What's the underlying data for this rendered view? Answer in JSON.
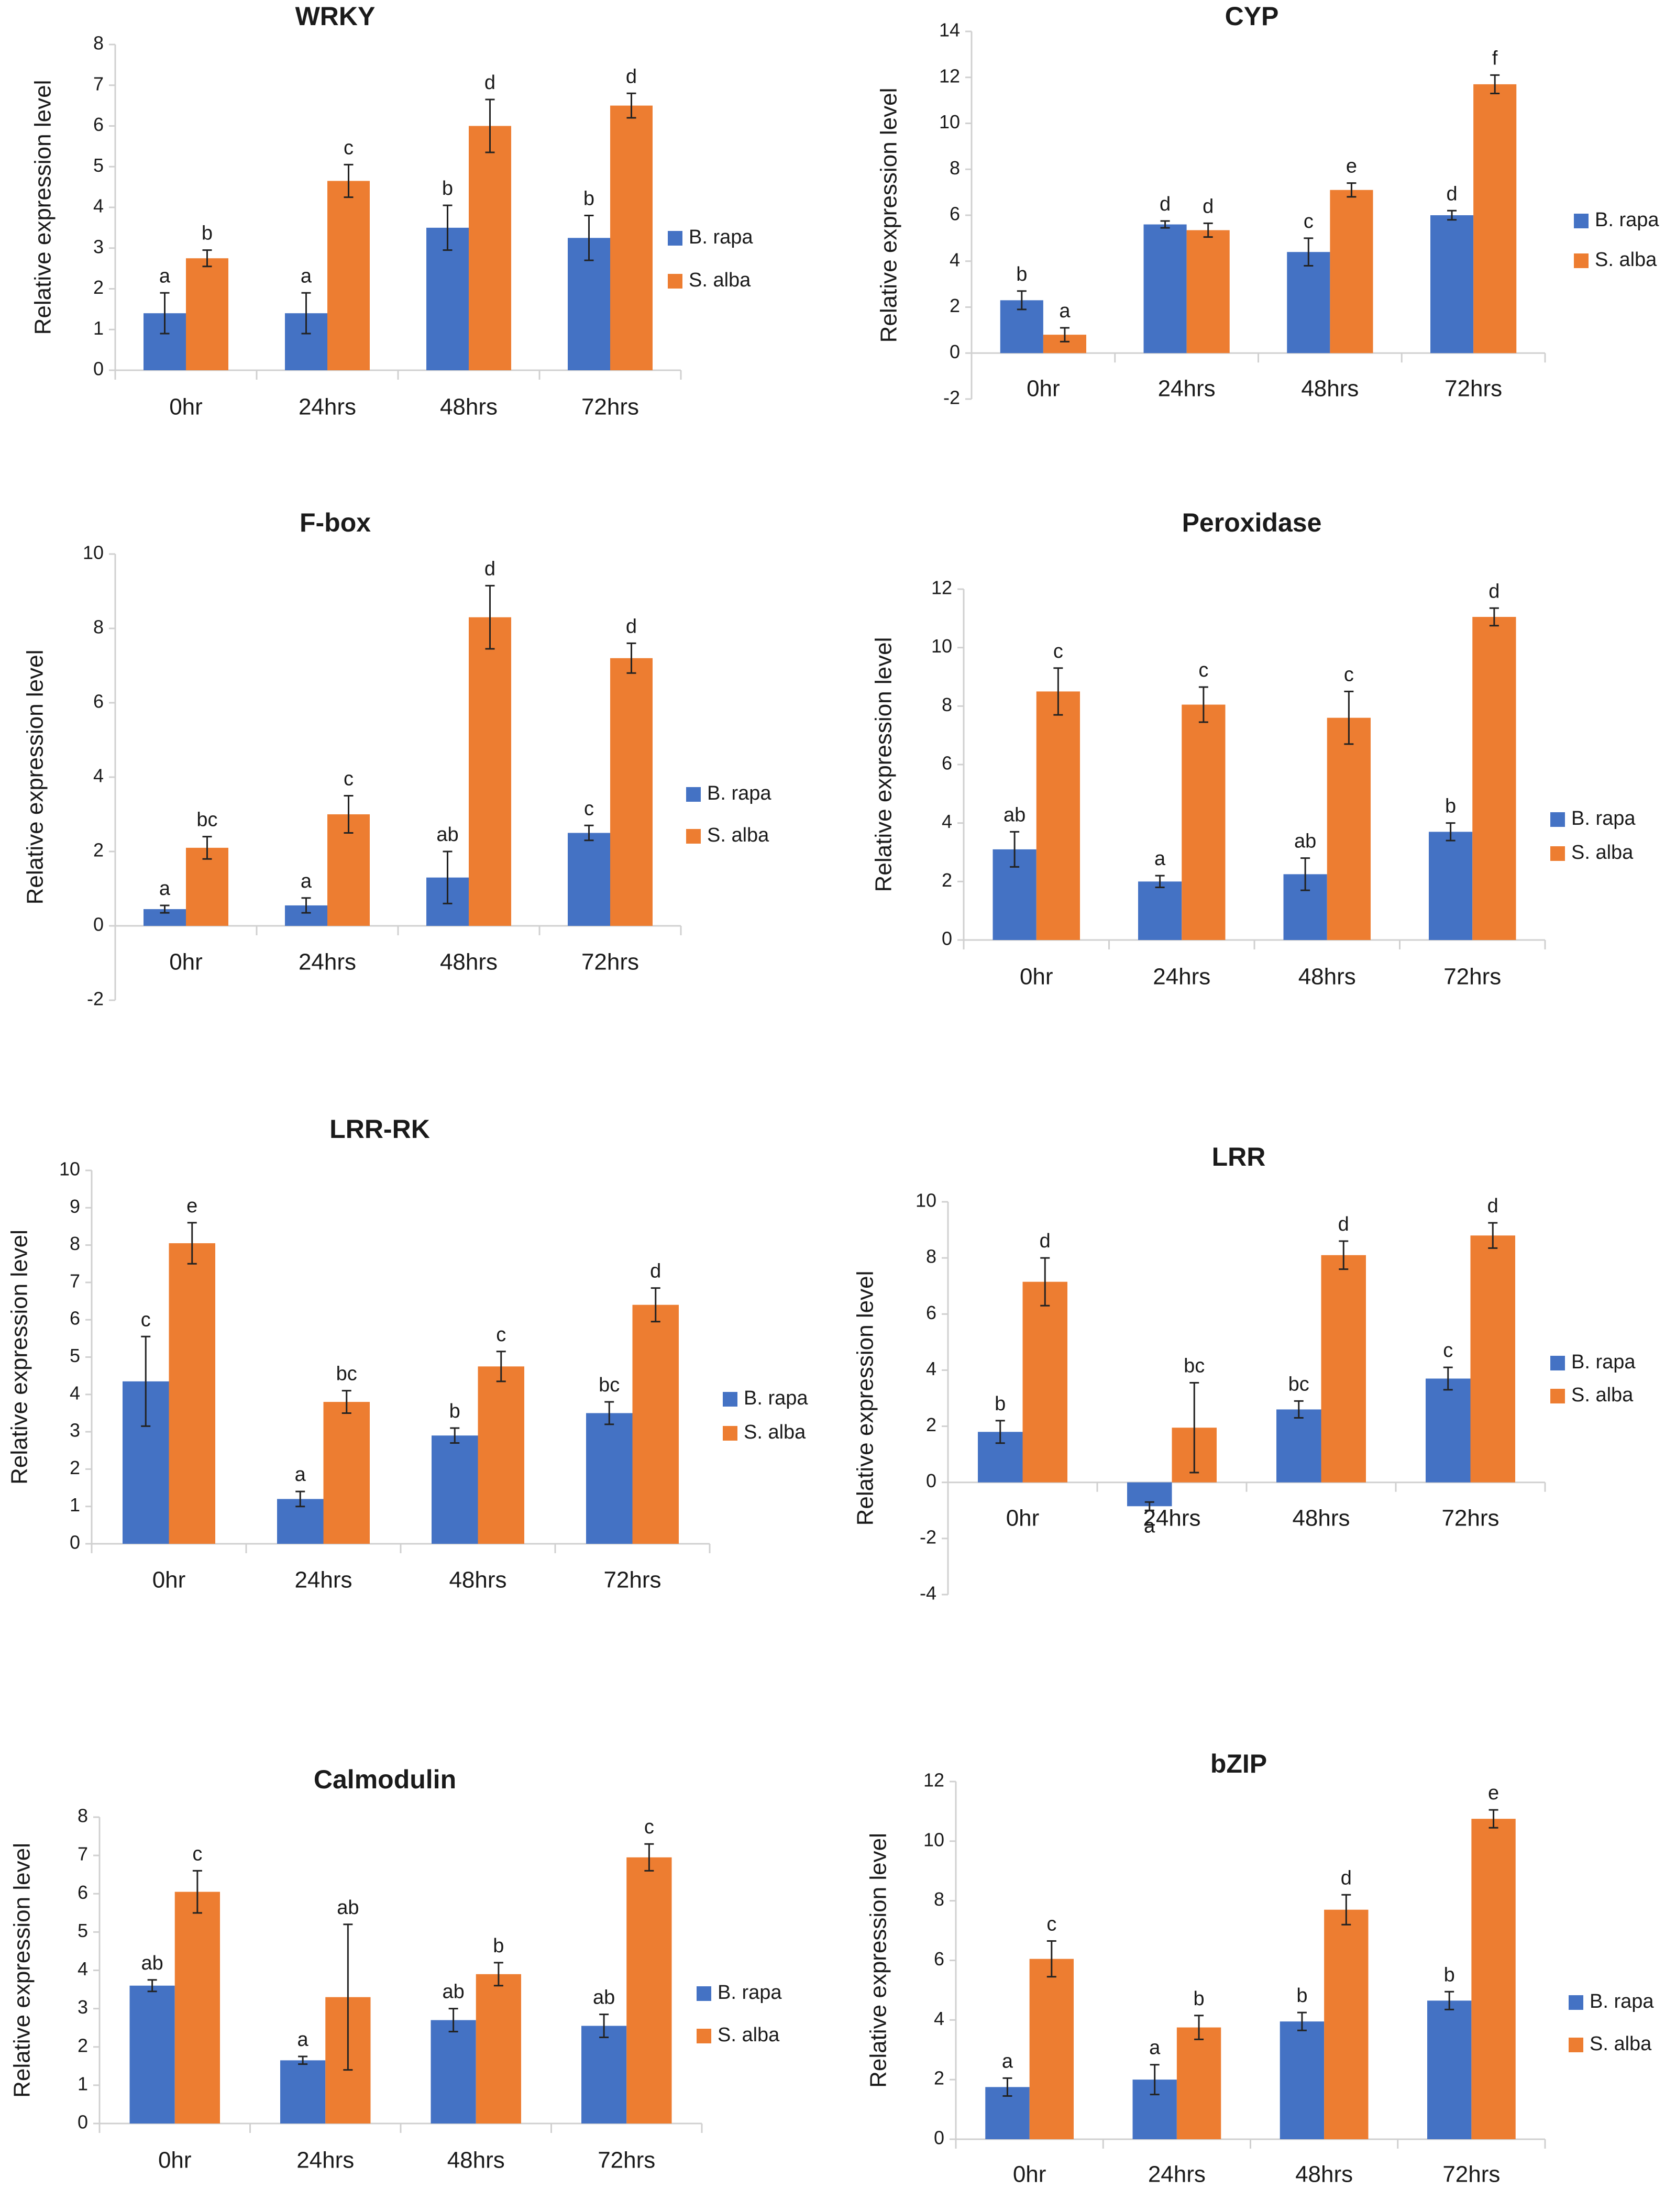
{
  "colors": {
    "b_rapa": "#4472C4",
    "s_alba": "#ED7D31"
  },
  "legend": [
    "B. rapa",
    "S. alba"
  ],
  "chart_data": [
    {
      "type": "bar",
      "title": "WRKY",
      "ylabel": "Relative expression level",
      "xlabel": "",
      "categories": [
        "0hr",
        "24hrs",
        "48hrs",
        "72hrs"
      ],
      "ylim": [
        0,
        8
      ],
      "yticks": [
        0,
        1,
        2,
        3,
        4,
        5,
        6,
        7,
        8
      ],
      "legend_position": "right",
      "series": [
        {
          "name": "B. rapa",
          "values": [
            1.4,
            1.4,
            3.5,
            3.25
          ],
          "errors": [
            0.5,
            0.5,
            0.55,
            0.55
          ],
          "letters": [
            "a",
            "a",
            "b",
            "b"
          ]
        },
        {
          "name": "S. alba",
          "values": [
            2.75,
            4.65,
            6.0,
            6.5
          ],
          "errors": [
            0.2,
            0.4,
            0.65,
            0.3
          ],
          "letters": [
            "b",
            "c",
            "d",
            "d"
          ]
        }
      ]
    },
    {
      "type": "bar",
      "title": "CYP",
      "ylabel": "Relative expression level",
      "xlabel": "",
      "categories": [
        "0hr",
        "24hrs",
        "48hrs",
        "72hrs"
      ],
      "ylim": [
        -2,
        14
      ],
      "yticks": [
        -2,
        0,
        2,
        4,
        6,
        8,
        10,
        12,
        14
      ],
      "legend_position": "right",
      "series": [
        {
          "name": "B. rapa",
          "values": [
            2.3,
            5.6,
            4.4,
            6.0
          ],
          "errors": [
            0.4,
            0.15,
            0.6,
            0.2
          ],
          "letters": [
            "b",
            "d",
            "c",
            "d"
          ]
        },
        {
          "name": "S. alba",
          "values": [
            0.8,
            5.35,
            7.1,
            11.7
          ],
          "errors": [
            0.3,
            0.3,
            0.3,
            0.4
          ],
          "letters": [
            "a",
            "d",
            "e",
            "f"
          ]
        }
      ]
    },
    {
      "type": "bar",
      "title": "F-box",
      "ylabel": "Relative expression level",
      "xlabel": "",
      "categories": [
        "0hr",
        "24hrs",
        "48hrs",
        "72hrs"
      ],
      "ylim": [
        -2,
        10
      ],
      "yticks": [
        -2,
        0,
        2,
        4,
        6,
        8,
        10
      ],
      "legend_position": "right",
      "series": [
        {
          "name": "B. rapa",
          "values": [
            0.45,
            0.55,
            1.3,
            2.5
          ],
          "errors": [
            0.1,
            0.2,
            0.7,
            0.2
          ],
          "letters": [
            "a",
            "a",
            "ab",
            "c"
          ]
        },
        {
          "name": "S. alba",
          "values": [
            2.1,
            3.0,
            8.3,
            7.2
          ],
          "errors": [
            0.3,
            0.5,
            0.85,
            0.4
          ],
          "letters": [
            "bc",
            "c",
            "d",
            "d"
          ]
        }
      ]
    },
    {
      "type": "bar",
      "title": "Peroxidase",
      "ylabel": "Relative expression level",
      "xlabel": "",
      "categories": [
        "0hr",
        "24hrs",
        "48hrs",
        "72hrs"
      ],
      "ylim": [
        0,
        12
      ],
      "yticks": [
        0,
        2,
        4,
        6,
        8,
        10,
        12
      ],
      "legend_position": "right",
      "series": [
        {
          "name": "B. rapa",
          "values": [
            3.1,
            2.0,
            2.25,
            3.7
          ],
          "errors": [
            0.6,
            0.2,
            0.55,
            0.3
          ],
          "letters": [
            "ab",
            "a",
            "ab",
            "b"
          ]
        },
        {
          "name": "S. alba",
          "values": [
            8.5,
            8.05,
            7.6,
            11.05
          ],
          "errors": [
            0.8,
            0.6,
            0.9,
            0.3
          ],
          "letters": [
            "c",
            "c",
            "c",
            "d"
          ]
        }
      ]
    },
    {
      "type": "bar",
      "title": "LRR-RK",
      "ylabel": "Relative expression level",
      "xlabel": "",
      "categories": [
        "0hr",
        "24hrs",
        "48hrs",
        "72hrs"
      ],
      "ylim": [
        0,
        10
      ],
      "yticks": [
        0,
        1,
        2,
        3,
        4,
        5,
        6,
        7,
        8,
        9,
        10
      ],
      "legend_position": "right",
      "series": [
        {
          "name": "B. rapa",
          "values": [
            4.35,
            1.2,
            2.9,
            3.5
          ],
          "errors": [
            1.2,
            0.2,
            0.2,
            0.3
          ],
          "letters": [
            "c",
            "a",
            "b",
            "bc"
          ]
        },
        {
          "name": "S. alba",
          "values": [
            8.05,
            3.8,
            4.75,
            6.4
          ],
          "errors": [
            0.55,
            0.3,
            0.4,
            0.45
          ],
          "letters": [
            "e",
            "bc",
            "c",
            "d"
          ]
        }
      ]
    },
    {
      "type": "bar",
      "title": "LRR",
      "ylabel": "Relative expression level",
      "xlabel": "",
      "categories": [
        "0hr",
        "24hrs",
        "48hrs",
        "72hrs"
      ],
      "ylim": [
        -4,
        10
      ],
      "yticks": [
        -4,
        -2,
        0,
        2,
        4,
        6,
        8,
        10
      ],
      "legend_position": "right",
      "series": [
        {
          "name": "B. rapa",
          "values": [
            1.8,
            -0.85,
            2.6,
            3.7
          ],
          "errors": [
            0.4,
            0.15,
            0.3,
            0.4
          ],
          "letters": [
            "b",
            "a",
            "bc",
            "c"
          ]
        },
        {
          "name": "S. alba",
          "values": [
            7.15,
            1.95,
            8.1,
            8.8
          ],
          "errors": [
            0.85,
            1.6,
            0.5,
            0.45
          ],
          "letters": [
            "d",
            "bc",
            "d",
            "d"
          ]
        }
      ]
    },
    {
      "type": "bar",
      "title": "Calmodulin",
      "ylabel": "Relative expression level",
      "xlabel": "",
      "categories": [
        "0hr",
        "24hrs",
        "48hrs",
        "72hrs"
      ],
      "ylim": [
        0,
        8
      ],
      "yticks": [
        0,
        1,
        2,
        3,
        4,
        5,
        6,
        7,
        8
      ],
      "legend_position": "right",
      "series": [
        {
          "name": "B. rapa",
          "values": [
            3.6,
            1.65,
            2.7,
            2.55
          ],
          "errors": [
            0.15,
            0.1,
            0.3,
            0.3
          ],
          "letters": [
            "ab",
            "a",
            "ab",
            "ab"
          ]
        },
        {
          "name": "S. alba",
          "values": [
            6.05,
            3.3,
            3.9,
            6.95
          ],
          "errors": [
            0.55,
            1.9,
            0.3,
            0.35
          ],
          "letters": [
            "c",
            "ab",
            "b",
            "c"
          ]
        }
      ]
    },
    {
      "type": "bar",
      "title": "bZIP",
      "ylabel": "Relative expression level",
      "xlabel": "",
      "categories": [
        "0hr",
        "24hrs",
        "48hrs",
        "72hrs"
      ],
      "ylim": [
        0,
        12
      ],
      "yticks": [
        0,
        2,
        4,
        6,
        8,
        10,
        12
      ],
      "legend_position": "right",
      "series": [
        {
          "name": "B. rapa",
          "values": [
            1.75,
            2.0,
            3.95,
            4.65
          ],
          "errors": [
            0.3,
            0.5,
            0.3,
            0.3
          ],
          "letters": [
            "a",
            "a",
            "b",
            "b"
          ]
        },
        {
          "name": "S. alba",
          "values": [
            6.05,
            3.75,
            7.7,
            10.75
          ],
          "errors": [
            0.6,
            0.4,
            0.5,
            0.3
          ],
          "letters": [
            "c",
            "b",
            "d",
            "e"
          ]
        }
      ]
    }
  ]
}
